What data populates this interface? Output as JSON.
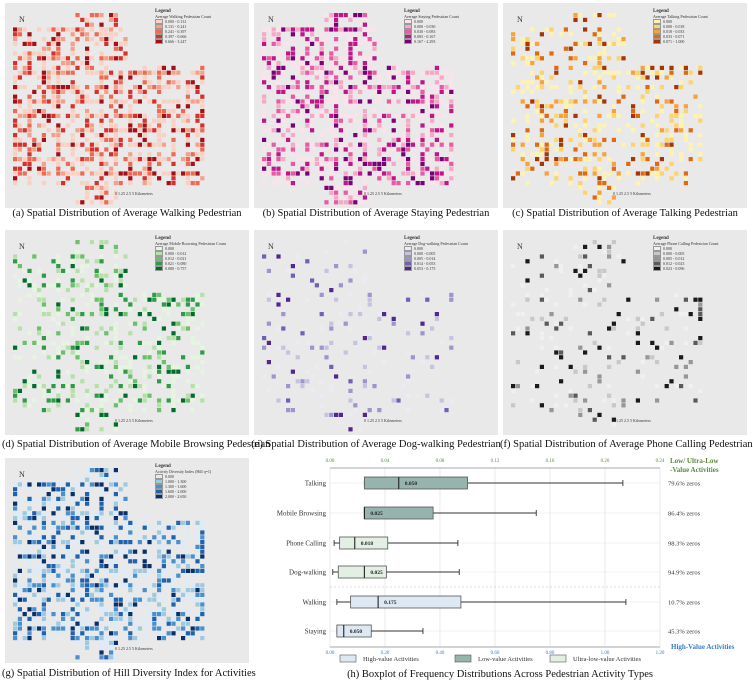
{
  "panels": [
    {
      "id": "a",
      "caption": "(a) Spatial Distribution of Average Walking Pedestrian",
      "legend_title": "Legend",
      "legend_sub": "Average Walking Pedestrian Count",
      "classes": [
        "0.000 - 0.131",
        "0.131 - 0.241",
        "0.241 - 0.397",
        "0.397 - 0.666",
        "0.666 - 3.247"
      ],
      "colors": [
        "#fbd0c0",
        "#f6a08a",
        "#ef6a52",
        "#d8302a",
        "#a50f15"
      ]
    },
    {
      "id": "b",
      "caption": "(b) Spatial Distribution of Average Staying Pedestrian",
      "legend_title": "Legend",
      "legend_sub": "Average Staying Pedestrian Count",
      "classes": [
        "0.000",
        "0.000 - 0.030",
        "0.030 - 0.083",
        "0.083 - 0.167",
        "0.167 - 2.293"
      ],
      "colors": [
        "#fbe3ec",
        "#f7a8c6",
        "#e85aa3",
        "#c0168a",
        "#7a0177"
      ]
    },
    {
      "id": "c",
      "caption": "(c) Spatial Distribution of Average Talking Pedestrian",
      "legend_title": "Legend",
      "legend_sub": "Average Talking Pedestrian Count",
      "classes": [
        "0.000",
        "0.000 - 0.018",
        "0.018 - 0.033",
        "0.033 - 0.071",
        "0.071 - 1.000"
      ],
      "colors": [
        "#fff3b0",
        "#fdd36a",
        "#f9a23a",
        "#e06a12",
        "#a63603"
      ]
    },
    {
      "id": "d",
      "caption": "(d) Spatial Distribution of Average Mobile Browsing Pedestrian",
      "legend_title": "Legend",
      "legend_sub": "Average Mobile Browsing Pedestrian Count",
      "classes": [
        "0.000",
        "0.000 - 0.012",
        "0.012 - 0.021",
        "0.021 - 0.080",
        "0.080 - 0.757"
      ],
      "colors": [
        "#e5f5e0",
        "#b5e0a8",
        "#6cc06a",
        "#2f9a48",
        "#006d2c"
      ]
    },
    {
      "id": "e",
      "caption": "(e) Spatial Distribution of Average Dog-walking Pedestrian",
      "legend_title": "Legend",
      "legend_sub": "Average Dog-walking Pedestrian Count",
      "classes": [
        "0.000",
        "0.000 - 0.005",
        "0.005 - 0.014",
        "0.014 - 0.053",
        "0.053 - 0.175"
      ],
      "colors": [
        "#ecebf4",
        "#c6c3e0",
        "#9d96cc",
        "#7261b3",
        "#54278f"
      ]
    },
    {
      "id": "f",
      "caption": "(f) Spatial Distribution of Average Phone Calling Pedestrian",
      "legend_title": "Legend",
      "legend_sub": "Average Phone Calling Pedestrian Count",
      "classes": [
        "0.000",
        "0.000 - 0.005",
        "0.005 - 0.012",
        "0.012 - 0.023",
        "0.023 - 0.096"
      ],
      "colors": [
        "#f0f0f0",
        "#c8c8c8",
        "#969696",
        "#5a5a5a",
        "#1a1a1a"
      ]
    },
    {
      "id": "g",
      "caption": "(g) Spatial Distribution of Hill Diversity Index for Activities",
      "legend_title": "Legend",
      "legend_sub": "Activity Diversity Index (Hill q=1)",
      "classes": [
        "0.000",
        "1.000 - 1.300",
        "1.300 - 1.600",
        "1.600 - 2.000",
        "2.000 - 2.650"
      ],
      "colors": [
        "#deebf7",
        "#9ecae1",
        "#4a90cf",
        "#1f63b0",
        "#08306b"
      ]
    }
  ],
  "map_common": {
    "north": "N",
    "scale_labels": [
      "0",
      "1.25",
      "2.5",
      "5 Kilometers"
    ]
  },
  "chart_data": {
    "type": "boxplot",
    "caption": "(h) Boxplot of Frequency Distributions Across Pedestrian Activity Types",
    "top_axis": {
      "label": "Low/ Ultra-Low -Value Activities",
      "label_lines": [
        "Low/ Ultra-Low",
        "-Value Activities"
      ],
      "range": [
        0,
        0.24
      ],
      "ticks": [
        "0.00",
        "0.04",
        "0.08",
        "0.12",
        "0.16",
        "0.20",
        "0.24"
      ],
      "color": "#5a8a3a"
    },
    "bottom_axis": {
      "label": "High-Value Activities",
      "range": [
        0,
        1.2
      ],
      "ticks": [
        "0.00",
        "0.20",
        "0.40",
        "0.60",
        "0.80",
        "1.00",
        "1.20"
      ],
      "color": "#3a7cc4"
    },
    "grid": true,
    "legend": {
      "position": "bottom",
      "items": [
        {
          "name": "High-value Activities",
          "color": "#dde8f3"
        },
        {
          "name": "Low-value Activities",
          "color": "#97b3ad"
        },
        {
          "name": "Ultra-low-value Activities",
          "color": "#e3efe3"
        }
      ]
    },
    "categories": [
      {
        "name": "Talking",
        "group": "Low-value Activities",
        "axis": "top",
        "whisker_low": 0.025,
        "q1": 0.025,
        "median": 0.05,
        "q3": 0.1,
        "whisker_high": 0.213,
        "median_label": "0.050",
        "zeros": "79.6% zeros"
      },
      {
        "name": "Mobile Browsing",
        "group": "Low-value Activities",
        "axis": "top",
        "whisker_low": 0.025,
        "q1": 0.025,
        "median": 0.025,
        "q3": 0.075,
        "whisker_high": 0.15,
        "median_label": "0.025",
        "zeros": "86.4% zeros"
      },
      {
        "name": "Phone Calling",
        "group": "Ultra-low-value Activities",
        "axis": "top",
        "whisker_low": 0.003,
        "q1": 0.007,
        "median": 0.018,
        "q3": 0.042,
        "whisker_high": 0.093,
        "median_label": "0.018",
        "zeros": "98.3% zeros"
      },
      {
        "name": "Dog-walking",
        "group": "Ultra-low-value Activities",
        "axis": "top",
        "whisker_low": 0.002,
        "q1": 0.006,
        "median": 0.025,
        "q3": 0.041,
        "whisker_high": 0.094,
        "median_label": "0.025",
        "zeros": "94.9% zeros"
      },
      {
        "name": "Walking",
        "group": "High-value Activities",
        "axis": "bottom",
        "whisker_low": 0.025,
        "q1": 0.075,
        "median": 0.175,
        "q3": 0.476,
        "whisker_high": 1.076,
        "median_label": "0.175",
        "zeros": "10.7% zeros"
      },
      {
        "name": "Staying",
        "group": "High-value Activities",
        "axis": "bottom",
        "whisker_low": 0.025,
        "q1": 0.025,
        "median": 0.05,
        "q3": 0.15,
        "whisker_high": 0.338,
        "median_label": "0.050",
        "zeros": "45.3% zeros"
      }
    ]
  }
}
